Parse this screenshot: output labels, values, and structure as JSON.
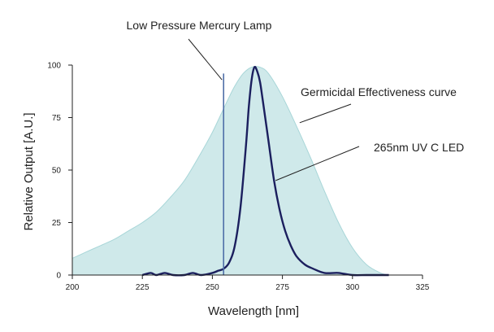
{
  "chart_data": {
    "type": "area",
    "title": "",
    "xlabel": "Wavelength [nm]",
    "ylabel": "Relative Output [A.U.]",
    "xlim": [
      200,
      325
    ],
    "ylim": [
      0,
      100
    ],
    "x_ticks": [
      200,
      225,
      250,
      275,
      300,
      325
    ],
    "y_ticks": [
      0,
      25,
      50,
      75,
      100
    ],
    "grid": false,
    "colors": {
      "germicidal_fill": "#cfe9ea",
      "germicidal_edge": "#a8d6d8",
      "led_line": "#1b1f5e",
      "lamp_line": "#4f6fa8",
      "axis": "#222222",
      "leader": "#222222"
    },
    "series": [
      {
        "name": "Germicidal Effectiveness curve",
        "kind": "area",
        "x": [
          200,
          205,
          210,
          215,
          220,
          225,
          230,
          235,
          240,
          245,
          250,
          255,
          258,
          261,
          264,
          267,
          270,
          275,
          280,
          285,
          290,
          295,
          300,
          305,
          310,
          313
        ],
        "y": [
          8,
          11,
          14,
          17,
          21,
          25,
          30,
          37,
          45,
          56,
          68,
          82,
          90,
          96,
          99,
          99,
          96,
          85,
          71,
          56,
          40,
          25,
          13,
          5,
          1,
          0
        ]
      },
      {
        "name": "265nm UV C LED",
        "kind": "line",
        "x": [
          225,
          228,
          230,
          233,
          236,
          240,
          243,
          246,
          250,
          252,
          254,
          256,
          258,
          260,
          262,
          263,
          264,
          265,
          266,
          267,
          268,
          270,
          272,
          274,
          276,
          278,
          280,
          283,
          286,
          290,
          295,
          300,
          305,
          310,
          313
        ],
        "y": [
          0,
          1,
          0,
          1,
          0,
          0,
          1,
          0,
          1,
          2,
          3,
          6,
          14,
          32,
          62,
          80,
          93,
          99,
          97,
          92,
          83,
          64,
          45,
          31,
          21,
          14,
          9,
          5,
          3,
          1,
          1,
          0,
          0,
          0,
          0
        ]
      },
      {
        "name": "Low Pressure Mercury Lamp",
        "kind": "line",
        "x": [
          254,
          254
        ],
        "y": [
          0,
          96
        ]
      }
    ],
    "annotations": [
      {
        "text": "Low Pressure Mercury Lamp",
        "target_series": "Low Pressure Mercury Lamp"
      },
      {
        "text": "Germicidal Effectiveness curve",
        "target_series": "Germicidal Effectiveness curve"
      },
      {
        "text": "265nm UV C LED",
        "target_series": "265nm UV C LED"
      }
    ]
  }
}
